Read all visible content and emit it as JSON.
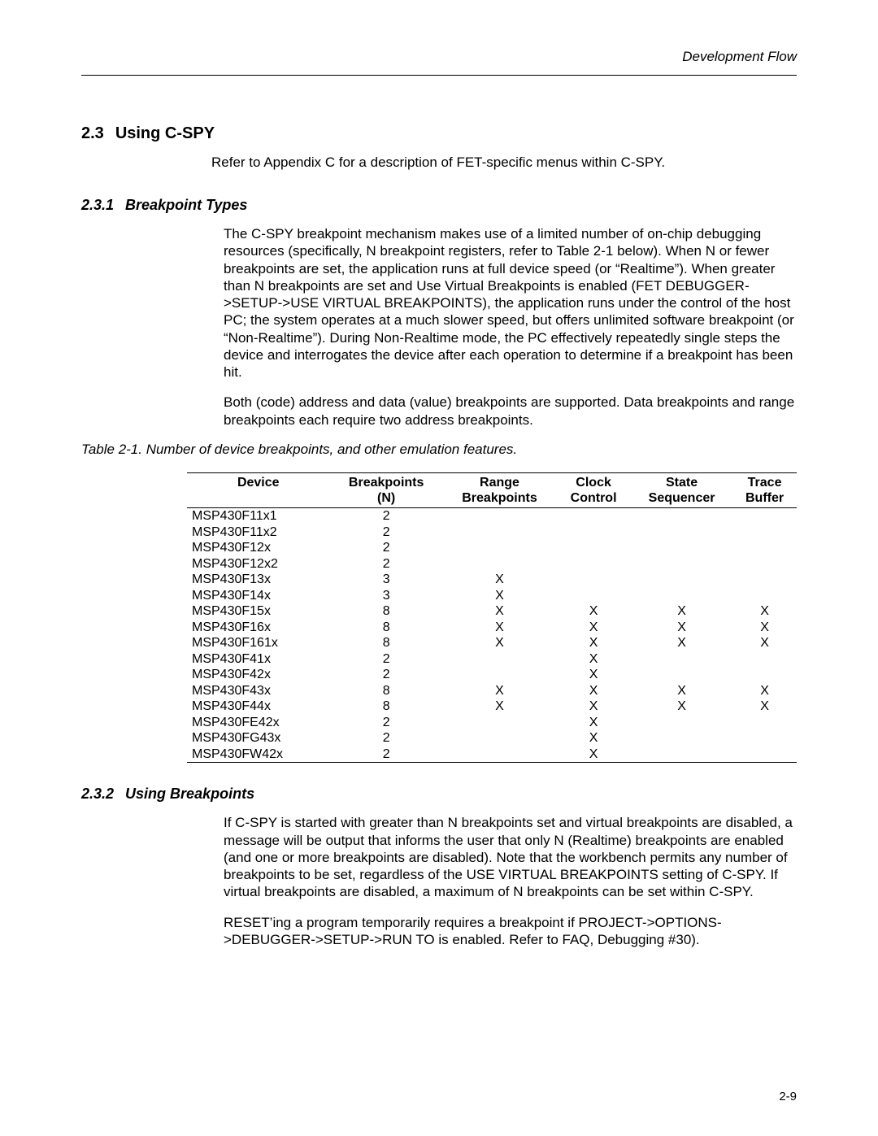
{
  "header": {
    "title": "Development Flow"
  },
  "section": {
    "num": "2.3",
    "title": "Using C-SPY",
    "intro": "Refer to Appendix C for a description of FET-specific menus within C-SPY."
  },
  "sub1": {
    "num": "2.3.1",
    "title": "Breakpoint Types",
    "p1": "The C-SPY breakpoint mechanism makes use of a limited number of on-chip debugging resources (specifically, N breakpoint registers, refer to Table 2-1 below). When N or fewer breakpoints are set, the application runs at full device speed (or “Realtime”). When greater than N breakpoints are set and Use Virtual Breakpoints is enabled (FET DEBUGGER->SETUP->USE VIRTUAL BREAKPOINTS), the application runs under the control of the host PC; the system operates at a much slower speed, but offers unlimited software breakpoint (or “Non-Realtime”). During Non-Realtime mode, the PC effectively repeatedly single steps the device and interrogates the device after each operation to determine if a breakpoint has been hit.",
    "p2": "Both (code) address and data (value) breakpoints are supported. Data breakpoints and range breakpoints each require two address breakpoints."
  },
  "table": {
    "caption": "Table 2-1. Number of device breakpoints, and other emulation features.",
    "headers": {
      "c0a": "Device",
      "c0b": "",
      "c1a": "Breakpoints",
      "c1b": "(N)",
      "c2a": "Range",
      "c2b": "Breakpoints",
      "c3a": "Clock",
      "c3b": "Control",
      "c4a": "State",
      "c4b": "Sequencer",
      "c5a": "Trace",
      "c5b": "Buffer"
    },
    "rows": [
      {
        "c0": "MSP430F11x1",
        "c1": "2",
        "c2": "",
        "c3": "",
        "c4": "",
        "c5": ""
      },
      {
        "c0": "MSP430F11x2",
        "c1": "2",
        "c2": "",
        "c3": "",
        "c4": "",
        "c5": ""
      },
      {
        "c0": "MSP430F12x",
        "c1": "2",
        "c2": "",
        "c3": "",
        "c4": "",
        "c5": ""
      },
      {
        "c0": "MSP430F12x2",
        "c1": "2",
        "c2": "",
        "c3": "",
        "c4": "",
        "c5": ""
      },
      {
        "c0": "MSP430F13x",
        "c1": "3",
        "c2": "X",
        "c3": "",
        "c4": "",
        "c5": ""
      },
      {
        "c0": "MSP430F14x",
        "c1": "3",
        "c2": "X",
        "c3": "",
        "c4": "",
        "c5": ""
      },
      {
        "c0": "MSP430F15x",
        "c1": "8",
        "c2": "X",
        "c3": "X",
        "c4": "X",
        "c5": "X"
      },
      {
        "c0": "MSP430F16x",
        "c1": "8",
        "c2": "X",
        "c3": "X",
        "c4": "X",
        "c5": "X"
      },
      {
        "c0": "MSP430F161x",
        "c1": "8",
        "c2": "X",
        "c3": "X",
        "c4": "X",
        "c5": "X"
      },
      {
        "c0": "MSP430F41x",
        "c1": "2",
        "c2": "",
        "c3": "X",
        "c4": "",
        "c5": ""
      },
      {
        "c0": "MSP430F42x",
        "c1": "2",
        "c2": "",
        "c3": "X",
        "c4": "",
        "c5": ""
      },
      {
        "c0": "MSP430F43x",
        "c1": "8",
        "c2": "X",
        "c3": "X",
        "c4": "X",
        "c5": "X"
      },
      {
        "c0": "MSP430F44x",
        "c1": "8",
        "c2": "X",
        "c3": "X",
        "c4": "X",
        "c5": "X"
      },
      {
        "c0": "MSP430FE42x",
        "c1": "2",
        "c2": "",
        "c3": "X",
        "c4": "",
        "c5": ""
      },
      {
        "c0": "MSP430FG43x",
        "c1": "2",
        "c2": "",
        "c3": "X",
        "c4": "",
        "c5": ""
      },
      {
        "c0": "MSP430FW42x",
        "c1": "2",
        "c2": "",
        "c3": "X",
        "c4": "",
        "c5": ""
      }
    ]
  },
  "sub2": {
    "num": "2.3.2",
    "title": "Using Breakpoints",
    "p1": "If C-SPY is started with greater than N breakpoints set and virtual breakpoints are disabled, a message will be output that informs the user that only N (Realtime) breakpoints are enabled (and one or more breakpoints are disabled). Note that the workbench permits any number of breakpoints to be set, regardless of the USE VIRTUAL BREAKPOINTS setting of C-SPY. If virtual breakpoints are disabled, a maximum of N breakpoints can be set within C-SPY.",
    "p2": "RESET’ing a program temporarily requires a breakpoint if PROJECT->OPTIONS->DEBUGGER->SETUP->RUN TO is enabled. Refer to FAQ, Debugging #30)."
  },
  "page": {
    "num": "2-9"
  }
}
